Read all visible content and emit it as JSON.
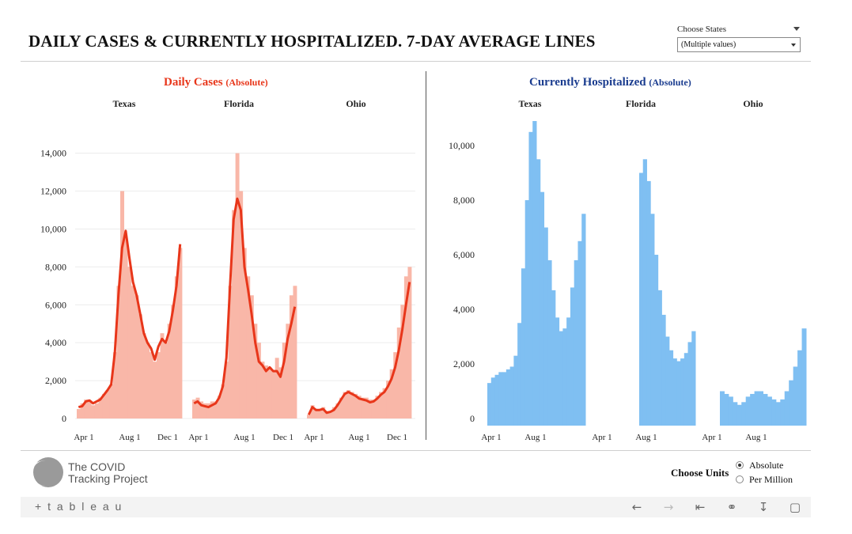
{
  "header": {
    "title": "DAILY CASES & CURRENTLY HOSPITALIZED. 7-DAY AVERAGE LINES",
    "filter_label": "Choose States",
    "filter_value": "(Multiple values)"
  },
  "panels": {
    "cases": {
      "title": "Daily Cases",
      "unit": "(Absolute)"
    },
    "hosp": {
      "title": "Currently Hospitalized",
      "unit": "(Absolute)"
    }
  },
  "colors": {
    "cases_bar": "#f9b7a8",
    "cases_line": "#e8361a",
    "hosp_bar": "#7fbff2",
    "cases_title": "#e8361a",
    "hosp_title": "#1a3c8f"
  },
  "chart_data": [
    {
      "type": "bar",
      "title": "Daily Cases (Absolute)",
      "xlabel": "",
      "ylabel": "",
      "ylim": [
        0,
        15000
      ],
      "yticks": [
        "0",
        "2,000",
        "4,000",
        "6,000",
        "8,000",
        "10,000",
        "12,000",
        "14,000"
      ],
      "xticks": [
        "Apr 1",
        "Aug 1",
        "Dec 1"
      ],
      "grid": true,
      "facets": [
        {
          "name": "Texas",
          "bars_weekly": [
            500,
            800,
            1000,
            900,
            700,
            800,
            1100,
            1300,
            1500,
            1800,
            3500,
            7000,
            12000,
            9500,
            8000,
            7000,
            6500,
            5500,
            4500,
            4000,
            3500,
            3000,
            3500,
            4500,
            4000,
            5000,
            6000,
            7500,
            9000
          ],
          "line_7day_avg": [
            600,
            650,
            900,
            950,
            800,
            900,
            1000,
            1250,
            1500,
            1800,
            3500,
            6500,
            9000,
            9900,
            8500,
            7200,
            6500,
            5500,
            4500,
            4000,
            3700,
            3100,
            3800,
            4200,
            4000,
            4600,
            5700,
            7000,
            9200
          ]
        },
        {
          "name": "Florida",
          "bars_weekly": [
            1000,
            1100,
            900,
            800,
            800,
            900,
            900,
            1200,
            1800,
            3000,
            7000,
            11000,
            14000,
            12000,
            9000,
            7500,
            6500,
            5000,
            4000,
            3000,
            2800,
            2700,
            2500,
            3200,
            2700,
            4000,
            5000,
            6500,
            7000
          ],
          "line_7day_avg": [
            800,
            900,
            700,
            650,
            600,
            700,
            800,
            1100,
            1700,
            3200,
            7000,
            10500,
            11600,
            11000,
            8000,
            6800,
            5500,
            4000,
            3000,
            2800,
            2500,
            2700,
            2500,
            2500,
            2200,
            3000,
            4200,
            5000,
            5900
          ]
        },
        {
          "name": "Ohio",
          "bars_weekly": [
            200,
            700,
            500,
            500,
            600,
            400,
            400,
            600,
            800,
            1100,
            1400,
            1500,
            1400,
            1300,
            1200,
            1100,
            1100,
            1000,
            1000,
            1200,
            1400,
            1600,
            2000,
            2600,
            3500,
            4800,
            6000,
            7500,
            8000
          ],
          "line_7day_avg": [
            200,
            600,
            450,
            450,
            500,
            300,
            350,
            450,
            700,
            1000,
            1300,
            1400,
            1300,
            1200,
            1050,
            1000,
            950,
            850,
            900,
            1050,
            1250,
            1400,
            1700,
            2100,
            2700,
            3600,
            4700,
            6000,
            7200
          ]
        }
      ]
    },
    {
      "type": "area",
      "title": "Currently Hospitalized (Absolute)",
      "xlabel": "",
      "ylabel": "",
      "ylim": [
        0,
        11000
      ],
      "yticks": [
        "0",
        "2,000",
        "4,000",
        "6,000",
        "8,000",
        "10,000"
      ],
      "xticks": [
        "Apr 1",
        "Aug 1"
      ],
      "grid": false,
      "facets": [
        {
          "name": "Texas",
          "values": [
            1300,
            1500,
            1600,
            1700,
            1700,
            1800,
            1900,
            2300,
            3500,
            5500,
            8000,
            10500,
            10900,
            9500,
            8300,
            7000,
            5800,
            4700,
            3700,
            3200,
            3300,
            3700,
            4800,
            5800,
            6500,
            7500
          ]
        },
        {
          "name": "Florida",
          "values": [
            9000,
            9500,
            8700,
            7500,
            6000,
            4700,
            3800,
            3000,
            2500,
            2200,
            2100,
            2200,
            2400,
            2800,
            3200
          ]
        },
        {
          "name": "Ohio",
          "values": [
            1000,
            900,
            800,
            600,
            500,
            600,
            800,
            900,
            1000,
            1000,
            900,
            800,
            700,
            600,
            700,
            1000,
            1400,
            1900,
            2500,
            3300
          ]
        }
      ]
    }
  ],
  "footer": {
    "logo_text_1": "The COVID",
    "logo_text_2": "Tracking Project",
    "units_label": "Choose Units",
    "units_options": [
      "Absolute",
      "Per Million"
    ],
    "units_selected": "Absolute",
    "tableau_label": "+ t a b l e a u"
  },
  "toolbar_icons": [
    "undo-icon",
    "redo-icon",
    "revert-icon",
    "share-icon",
    "download-icon",
    "fullscreen-icon"
  ]
}
